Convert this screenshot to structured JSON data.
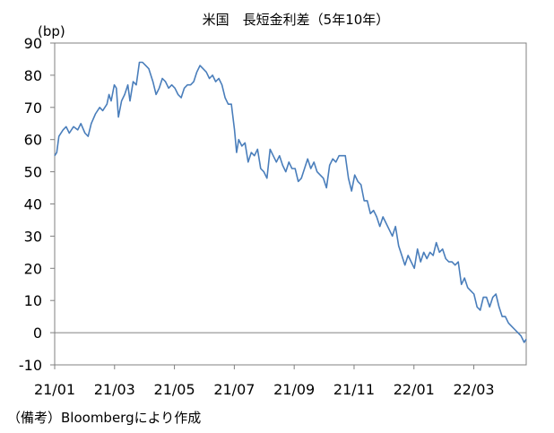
{
  "chart_data": {
    "type": "line",
    "title": "米国　長短金利差（5年10年）",
    "y_unit_label": "(bp)",
    "ylim": [
      -10,
      90
    ],
    "y_ticks": [
      90,
      80,
      70,
      60,
      50,
      40,
      30,
      20,
      10,
      0,
      -10
    ],
    "x_ticks": [
      "21/01",
      "21/03",
      "21/05",
      "21/07",
      "21/09",
      "21/11",
      "22/01",
      "22/03"
    ],
    "x_start": "2021-01-04",
    "x_end": "2022-03-31",
    "grid": false,
    "line_color": "#4a7ebb",
    "series": [
      {
        "name": "",
        "points": [
          [
            "2021-01-04",
            55
          ],
          [
            "2021-01-06",
            56
          ],
          [
            "2021-01-08",
            61
          ],
          [
            "2021-01-12",
            63
          ],
          [
            "2021-01-15",
            64
          ],
          [
            "2021-01-18",
            62
          ],
          [
            "2021-01-22",
            64
          ],
          [
            "2021-01-26",
            63
          ],
          [
            "2021-01-29",
            65
          ],
          [
            "2021-02-02",
            62
          ],
          [
            "2021-02-05",
            61
          ],
          [
            "2021-02-08",
            65
          ],
          [
            "2021-02-12",
            68
          ],
          [
            "2021-02-16",
            70
          ],
          [
            "2021-02-19",
            69
          ],
          [
            "2021-02-23",
            71
          ],
          [
            "2021-02-25",
            74
          ],
          [
            "2021-02-27",
            72
          ],
          [
            "2021-03-02",
            77
          ],
          [
            "2021-03-04",
            76
          ],
          [
            "2021-03-06",
            67
          ],
          [
            "2021-03-09",
            72
          ],
          [
            "2021-03-12",
            74
          ],
          [
            "2021-03-15",
            77
          ],
          [
            "2021-03-17",
            72
          ],
          [
            "2021-03-20",
            78
          ],
          [
            "2021-03-23",
            77
          ],
          [
            "2021-03-26",
            84
          ],
          [
            "2021-03-29",
            84
          ],
          [
            "2021-04-01",
            83
          ],
          [
            "2021-04-04",
            82
          ],
          [
            "2021-04-08",
            78
          ],
          [
            "2021-04-11",
            74
          ],
          [
            "2021-04-14",
            76
          ],
          [
            "2021-04-17",
            79
          ],
          [
            "2021-04-20",
            78
          ],
          [
            "2021-04-23",
            76
          ],
          [
            "2021-04-26",
            77
          ],
          [
            "2021-04-29",
            76
          ],
          [
            "2021-05-02",
            74
          ],
          [
            "2021-05-05",
            73
          ],
          [
            "2021-05-08",
            76
          ],
          [
            "2021-05-11",
            77
          ],
          [
            "2021-05-14",
            77
          ],
          [
            "2021-05-17",
            78
          ],
          [
            "2021-05-20",
            81
          ],
          [
            "2021-05-23",
            83
          ],
          [
            "2021-05-26",
            82
          ],
          [
            "2021-05-29",
            81
          ],
          [
            "2021-06-01",
            79
          ],
          [
            "2021-06-04",
            80
          ],
          [
            "2021-06-07",
            78
          ],
          [
            "2021-06-10",
            79
          ],
          [
            "2021-06-13",
            77
          ],
          [
            "2021-06-16",
            73
          ],
          [
            "2021-06-19",
            71
          ],
          [
            "2021-06-22",
            71
          ],
          [
            "2021-06-25",
            63
          ],
          [
            "2021-06-27",
            56
          ],
          [
            "2021-06-29",
            60
          ],
          [
            "2021-07-02",
            58
          ],
          [
            "2021-07-05",
            59
          ],
          [
            "2021-07-08",
            53
          ],
          [
            "2021-07-11",
            56
          ],
          [
            "2021-07-14",
            55
          ],
          [
            "2021-07-17",
            57
          ],
          [
            "2021-07-20",
            51
          ],
          [
            "2021-07-23",
            50
          ],
          [
            "2021-07-26",
            48
          ],
          [
            "2021-07-29",
            57
          ],
          [
            "2021-08-01",
            55
          ],
          [
            "2021-08-04",
            53
          ],
          [
            "2021-08-07",
            55
          ],
          [
            "2021-08-10",
            52
          ],
          [
            "2021-08-13",
            50
          ],
          [
            "2021-08-16",
            53
          ],
          [
            "2021-08-19",
            51
          ],
          [
            "2021-08-22",
            51
          ],
          [
            "2021-08-25",
            47
          ],
          [
            "2021-08-28",
            48
          ],
          [
            "2021-08-31",
            51
          ],
          [
            "2021-09-03",
            54
          ],
          [
            "2021-09-06",
            51
          ],
          [
            "2021-09-09",
            53
          ],
          [
            "2021-09-12",
            50
          ],
          [
            "2021-09-15",
            49
          ],
          [
            "2021-09-18",
            48
          ],
          [
            "2021-09-21",
            45
          ],
          [
            "2021-09-24",
            52
          ],
          [
            "2021-09-27",
            54
          ],
          [
            "2021-09-30",
            53
          ],
          [
            "2021-10-03",
            55
          ],
          [
            "2021-10-06",
            55
          ],
          [
            "2021-10-09",
            55
          ],
          [
            "2021-10-12",
            48
          ],
          [
            "2021-10-15",
            44
          ],
          [
            "2021-10-18",
            49
          ],
          [
            "2021-10-21",
            47
          ],
          [
            "2021-10-24",
            46
          ],
          [
            "2021-10-27",
            41
          ],
          [
            "2021-10-30",
            41
          ],
          [
            "2021-11-02",
            37
          ],
          [
            "2021-11-05",
            38
          ],
          [
            "2021-11-08",
            36
          ],
          [
            "2021-11-11",
            33
          ],
          [
            "2021-11-14",
            36
          ],
          [
            "2021-11-17",
            34
          ],
          [
            "2021-11-20",
            32
          ],
          [
            "2021-11-23",
            30
          ],
          [
            "2021-11-26",
            33
          ],
          [
            "2021-11-29",
            27
          ],
          [
            "2021-12-02",
            24
          ],
          [
            "2021-12-05",
            21
          ],
          [
            "2021-12-08",
            24
          ],
          [
            "2021-12-11",
            22
          ],
          [
            "2021-12-14",
            20
          ],
          [
            "2021-12-17",
            26
          ],
          [
            "2021-12-20",
            22
          ],
          [
            "2021-12-23",
            25
          ],
          [
            "2021-12-26",
            23
          ],
          [
            "2021-12-29",
            25
          ],
          [
            "2022-01-01",
            24
          ],
          [
            "2022-01-04",
            28
          ],
          [
            "2022-01-07",
            25
          ],
          [
            "2022-01-10",
            26
          ],
          [
            "2022-01-13",
            23
          ],
          [
            "2022-01-16",
            22
          ],
          [
            "2022-01-19",
            22
          ],
          [
            "2022-01-22",
            21
          ],
          [
            "2022-01-25",
            22
          ],
          [
            "2022-01-28",
            15
          ],
          [
            "2022-01-31",
            17
          ],
          [
            "2022-02-03",
            14
          ],
          [
            "2022-02-06",
            13
          ],
          [
            "2022-02-09",
            12
          ],
          [
            "2022-02-12",
            8
          ],
          [
            "2022-02-15",
            7
          ],
          [
            "2022-02-18",
            11
          ],
          [
            "2022-02-21",
            11
          ],
          [
            "2022-02-24",
            8
          ],
          [
            "2022-02-27",
            11
          ],
          [
            "2022-03-02",
            12
          ],
          [
            "2022-03-05",
            8
          ],
          [
            "2022-03-08",
            5
          ],
          [
            "2022-03-11",
            5
          ],
          [
            "2022-03-14",
            3
          ],
          [
            "2022-03-17",
            2
          ],
          [
            "2022-03-20",
            1
          ],
          [
            "2022-03-23",
            0
          ],
          [
            "2022-03-26",
            -1
          ],
          [
            "2022-03-29",
            -3
          ],
          [
            "2022-03-31",
            -2
          ]
        ]
      }
    ]
  },
  "footnote": "（備考）Bloombergにより作成"
}
